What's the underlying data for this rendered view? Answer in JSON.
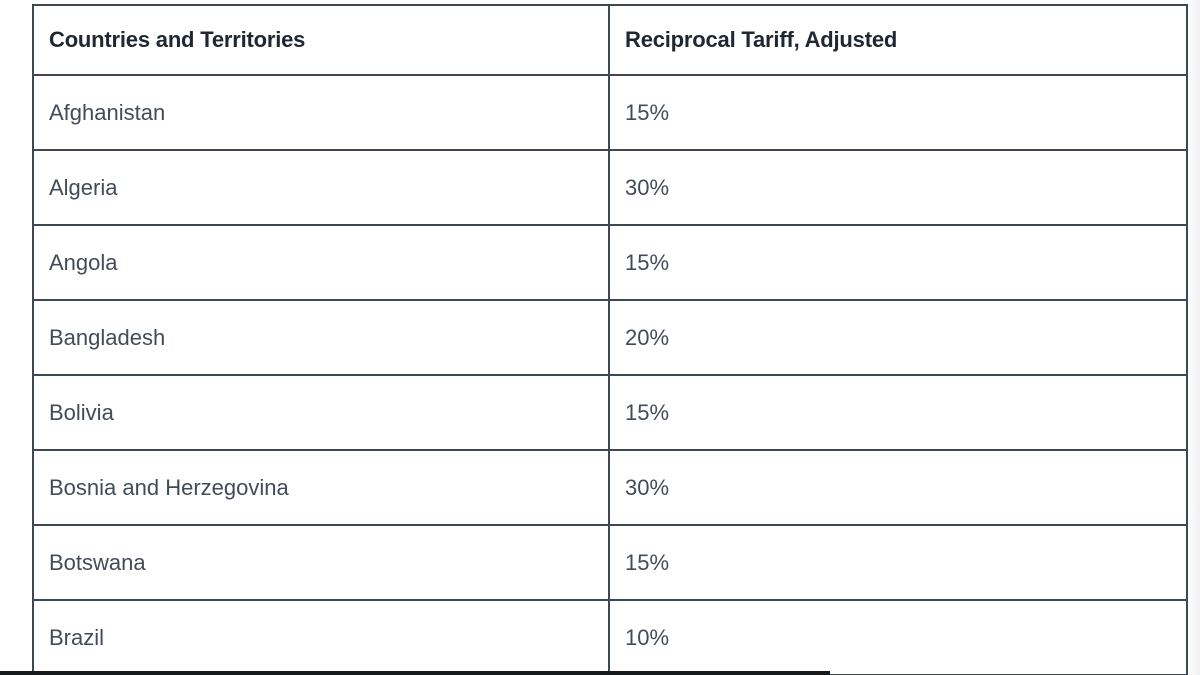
{
  "page": {
    "background_color": "#ffffff",
    "bottom_bar_color": "#17191d"
  },
  "table": {
    "border_color": "#3f4750",
    "header": {
      "country_label": "Countries and Territories",
      "tariff_label": "Reciprocal Tariff, Adjusted",
      "text_color": "#1f2733"
    },
    "body_text_color": "#424c58",
    "rows": [
      {
        "country": "Afghanistan",
        "tariff": "15%"
      },
      {
        "country": "Algeria",
        "tariff": "30%"
      },
      {
        "country": "Angola",
        "tariff": "15%"
      },
      {
        "country": "Bangladesh",
        "tariff": "20%"
      },
      {
        "country": "Bolivia",
        "tariff": "15%"
      },
      {
        "country": "Bosnia and Herzegovina",
        "tariff": "30%"
      },
      {
        "country": "Botswana",
        "tariff": "15%"
      },
      {
        "country": "Brazil",
        "tariff": "10%"
      }
    ]
  }
}
